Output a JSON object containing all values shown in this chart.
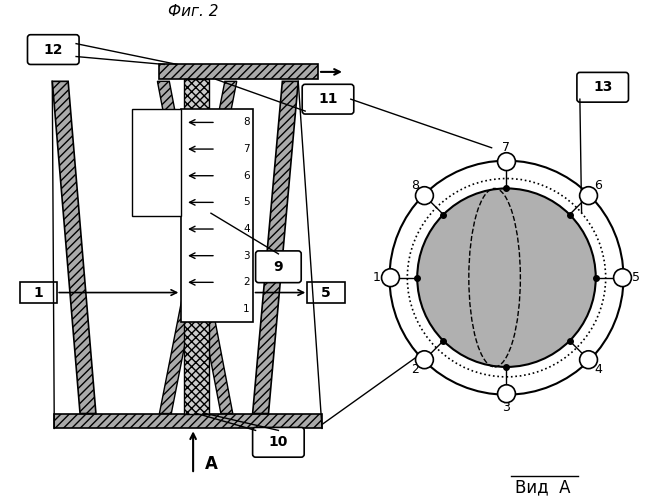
{
  "title": "Фиг. 2",
  "view_title": "Вид  А",
  "bg_color": "#ffffff",
  "figsize": [
    6.52,
    5.0
  ],
  "dpi": 100
}
